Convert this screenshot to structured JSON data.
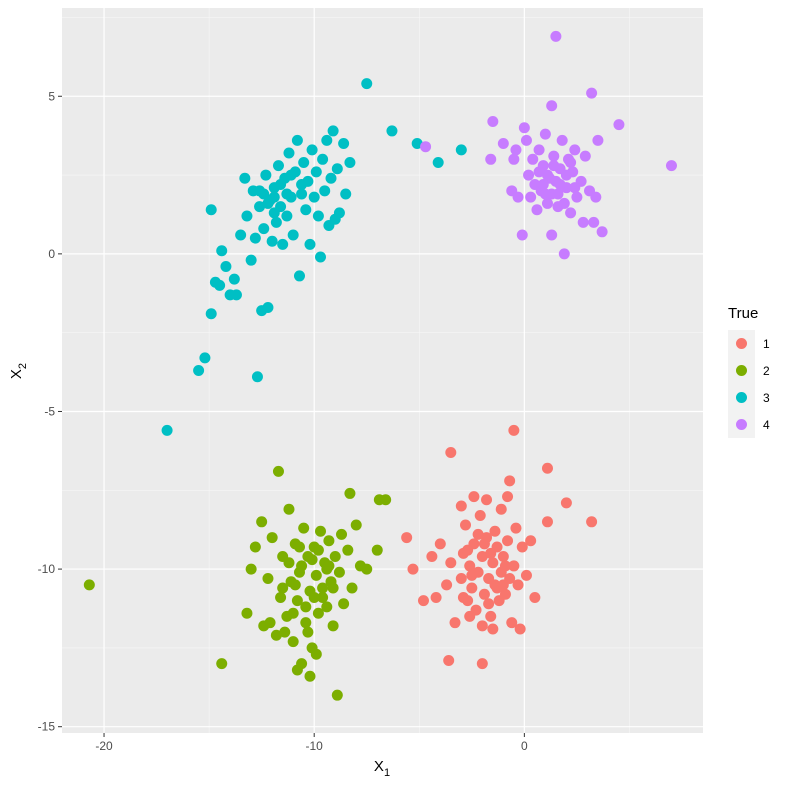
{
  "chart_data": {
    "type": "scatter",
    "xlabel": "X",
    "xlabel_sub": "1",
    "ylabel": "X",
    "ylabel_sub": "2",
    "xlim": [
      -22,
      8.5
    ],
    "ylim": [
      -15.2,
      7.8
    ],
    "x_ticks": [
      -20,
      -10,
      0
    ],
    "x_tick_labels": [
      "-20",
      "-10",
      "0"
    ],
    "y_ticks": [
      -15,
      -10,
      -5,
      0,
      5
    ],
    "y_tick_labels": [
      "-15",
      "-10",
      "-5",
      "0",
      "5"
    ],
    "grid": true,
    "legend_title": "True",
    "legend_position": "right",
    "series": [
      {
        "name": "1",
        "color": "#F8766D",
        "points": [
          [
            -5.6,
            -9.0
          ],
          [
            -5.3,
            -10.0
          ],
          [
            -4.8,
            -11.0
          ],
          [
            -4.4,
            -9.6
          ],
          [
            -4.2,
            -10.9
          ],
          [
            -4.0,
            -9.2
          ],
          [
            -3.7,
            -10.5
          ],
          [
            -3.5,
            -6.3
          ],
          [
            -3.5,
            -9.8
          ],
          [
            -3.3,
            -11.7
          ],
          [
            -3.0,
            -8.0
          ],
          [
            -3.0,
            -10.3
          ],
          [
            -2.9,
            -9.5
          ],
          [
            -2.8,
            -8.6
          ],
          [
            -2.7,
            -11.0
          ],
          [
            -2.6,
            -9.9
          ],
          [
            -2.5,
            -10.6
          ],
          [
            -2.4,
            -7.7
          ],
          [
            -2.4,
            -9.2
          ],
          [
            -2.3,
            -11.3
          ],
          [
            -2.2,
            -10.1
          ],
          [
            -2.1,
            -8.3
          ],
          [
            -2.0,
            -9.6
          ],
          [
            -2.0,
            -11.8
          ],
          [
            -1.9,
            -10.8
          ],
          [
            -1.8,
            -7.8
          ],
          [
            -1.8,
            -9.0
          ],
          [
            -1.7,
            -10.3
          ],
          [
            -1.6,
            -11.5
          ],
          [
            -1.5,
            -9.8
          ],
          [
            -1.4,
            -8.8
          ],
          [
            -1.4,
            -10.5
          ],
          [
            -1.3,
            -9.3
          ],
          [
            -1.2,
            -11.0
          ],
          [
            -1.1,
            -8.1
          ],
          [
            -1.1,
            -10.1
          ],
          [
            -1.0,
            -9.6
          ],
          [
            -0.9,
            -10.8
          ],
          [
            -0.8,
            -7.7
          ],
          [
            -0.8,
            -9.1
          ],
          [
            -0.7,
            -10.3
          ],
          [
            -0.6,
            -11.7
          ],
          [
            -0.5,
            -5.6
          ],
          [
            -0.5,
            -9.9
          ],
          [
            -0.4,
            -8.7
          ],
          [
            -0.3,
            -10.5
          ],
          [
            -0.2,
            -11.9
          ],
          [
            -0.1,
            -9.3
          ],
          [
            0.1,
            -10.2
          ],
          [
            0.3,
            -9.1
          ],
          [
            0.5,
            -10.9
          ],
          [
            1.1,
            -6.8
          ],
          [
            1.1,
            -8.5
          ],
          [
            2.0,
            -7.9
          ],
          [
            3.2,
            -8.5
          ],
          [
            -3.6,
            -12.9
          ],
          [
            -2.0,
            -13.0
          ],
          [
            -2.6,
            -11.5
          ],
          [
            -1.5,
            -11.9
          ],
          [
            -0.7,
            -7.2
          ],
          [
            -2.9,
            -10.9
          ],
          [
            -1.9,
            -9.2
          ],
          [
            -1.3,
            -10.6
          ],
          [
            -2.2,
            -8.9
          ],
          [
            -1.6,
            -9.5
          ],
          [
            -0.9,
            -9.9
          ],
          [
            -2.5,
            -10.2
          ],
          [
            -1.0,
            -10.5
          ],
          [
            -1.7,
            -11.1
          ],
          [
            -2.7,
            -9.4
          ]
        ]
      },
      {
        "name": "2",
        "color": "#7CAE00",
        "points": [
          [
            -20.7,
            -10.5
          ],
          [
            -14.4,
            -13.0
          ],
          [
            -13.2,
            -11.4
          ],
          [
            -13.0,
            -10.0
          ],
          [
            -12.8,
            -9.3
          ],
          [
            -12.5,
            -8.5
          ],
          [
            -12.4,
            -11.8
          ],
          [
            -12.2,
            -10.3
          ],
          [
            -12.0,
            -9.0
          ],
          [
            -11.8,
            -12.1
          ],
          [
            -11.7,
            -6.9
          ],
          [
            -11.6,
            -10.9
          ],
          [
            -11.5,
            -9.6
          ],
          [
            -11.3,
            -11.5
          ],
          [
            -11.2,
            -8.1
          ],
          [
            -11.1,
            -10.4
          ],
          [
            -11.0,
            -12.3
          ],
          [
            -10.9,
            -9.2
          ],
          [
            -10.8,
            -11.0
          ],
          [
            -10.7,
            -10.1
          ],
          [
            -10.6,
            -13.0
          ],
          [
            -10.5,
            -8.7
          ],
          [
            -10.4,
            -11.7
          ],
          [
            -10.3,
            -9.6
          ],
          [
            -10.2,
            -10.7
          ],
          [
            -10.1,
            -12.5
          ],
          [
            -10.0,
            -9.3
          ],
          [
            -9.9,
            -10.2
          ],
          [
            -9.8,
            -11.4
          ],
          [
            -9.7,
            -8.8
          ],
          [
            -9.6,
            -10.6
          ],
          [
            -9.5,
            -9.8
          ],
          [
            -9.4,
            -11.2
          ],
          [
            -9.3,
            -9.1
          ],
          [
            -9.2,
            -10.4
          ],
          [
            -9.1,
            -11.8
          ],
          [
            -9.0,
            -9.6
          ],
          [
            -8.9,
            -14.0
          ],
          [
            -8.8,
            -10.1
          ],
          [
            -8.7,
            -8.9
          ],
          [
            -8.6,
            -11.1
          ],
          [
            -8.4,
            -9.4
          ],
          [
            -8.3,
            -7.6
          ],
          [
            -8.2,
            -10.6
          ],
          [
            -8.0,
            -8.6
          ],
          [
            -7.8,
            -9.9
          ],
          [
            -7.5,
            -10.0
          ],
          [
            -7.0,
            -9.4
          ],
          [
            -6.9,
            -7.8
          ],
          [
            -6.6,
            -7.8
          ],
          [
            -10.3,
            -12.0
          ],
          [
            -10.8,
            -13.2
          ],
          [
            -10.2,
            -13.4
          ],
          [
            -9.9,
            -12.7
          ],
          [
            -11.5,
            -10.6
          ],
          [
            -10.6,
            -9.9
          ],
          [
            -10.0,
            -10.9
          ],
          [
            -9.4,
            -10.0
          ],
          [
            -10.9,
            -10.5
          ],
          [
            -9.8,
            -9.4
          ],
          [
            -10.4,
            -11.2
          ],
          [
            -11.2,
            -9.8
          ],
          [
            -9.6,
            -10.9
          ],
          [
            -10.1,
            -9.7
          ],
          [
            -9.1,
            -10.6
          ],
          [
            -11.0,
            -11.4
          ],
          [
            -10.7,
            -9.3
          ],
          [
            -9.3,
            -9.9
          ],
          [
            -12.1,
            -11.7
          ],
          [
            -11.4,
            -12.0
          ]
        ]
      },
      {
        "name": "3",
        "color": "#00BFC4",
        "points": [
          [
            -17.0,
            -5.6
          ],
          [
            -15.5,
            -3.7
          ],
          [
            -15.2,
            -3.3
          ],
          [
            -14.9,
            -1.9
          ],
          [
            -14.9,
            1.4
          ],
          [
            -14.7,
            -0.9
          ],
          [
            -14.5,
            -1.0
          ],
          [
            -14.4,
            0.1
          ],
          [
            -14.2,
            -0.4
          ],
          [
            -14.0,
            -1.3
          ],
          [
            -13.8,
            -0.8
          ],
          [
            -13.7,
            -1.3
          ],
          [
            -13.5,
            0.6
          ],
          [
            -13.3,
            2.4
          ],
          [
            -13.2,
            1.2
          ],
          [
            -13.0,
            -0.2
          ],
          [
            -12.9,
            2.0
          ],
          [
            -12.7,
            -3.9
          ],
          [
            -12.6,
            1.5
          ],
          [
            -12.5,
            -1.8
          ],
          [
            -12.4,
            0.8
          ],
          [
            -12.3,
            2.5
          ],
          [
            -12.2,
            -1.7
          ],
          [
            -12.1,
            1.7
          ],
          [
            -12.0,
            0.4
          ],
          [
            -11.9,
            2.1
          ],
          [
            -11.8,
            1.0
          ],
          [
            -11.7,
            2.8
          ],
          [
            -11.6,
            1.5
          ],
          [
            -11.5,
            0.3
          ],
          [
            -11.4,
            2.4
          ],
          [
            -11.3,
            1.2
          ],
          [
            -11.2,
            3.2
          ],
          [
            -11.1,
            1.8
          ],
          [
            -11.0,
            0.6
          ],
          [
            -10.9,
            2.6
          ],
          [
            -10.8,
            3.6
          ],
          [
            -10.7,
            -0.7
          ],
          [
            -10.6,
            1.9
          ],
          [
            -10.5,
            2.9
          ],
          [
            -10.4,
            1.4
          ],
          [
            -10.3,
            2.3
          ],
          [
            -10.2,
            0.3
          ],
          [
            -10.1,
            3.3
          ],
          [
            -10.0,
            1.8
          ],
          [
            -9.9,
            2.6
          ],
          [
            -9.8,
            1.2
          ],
          [
            -9.7,
            -0.1
          ],
          [
            -9.6,
            3.0
          ],
          [
            -9.5,
            2.0
          ],
          [
            -9.4,
            3.6
          ],
          [
            -9.3,
            0.9
          ],
          [
            -9.2,
            2.4
          ],
          [
            -9.1,
            3.9
          ],
          [
            -9.0,
            1.1
          ],
          [
            -8.9,
            2.7
          ],
          [
            -8.8,
            1.3
          ],
          [
            -8.6,
            3.5
          ],
          [
            -8.5,
            1.9
          ],
          [
            -8.3,
            2.9
          ],
          [
            -7.5,
            5.4
          ],
          [
            -6.3,
            3.9
          ],
          [
            -5.1,
            3.5
          ],
          [
            -4.1,
            2.9
          ],
          [
            -3.0,
            3.3
          ],
          [
            -12.6,
            2.0
          ],
          [
            -12.2,
            1.6
          ],
          [
            -11.9,
            1.8
          ],
          [
            -11.6,
            2.2
          ],
          [
            -11.3,
            1.9
          ],
          [
            -11.9,
            1.3
          ],
          [
            -12.4,
            1.9
          ],
          [
            -11.1,
            2.5
          ],
          [
            -10.6,
            2.2
          ],
          [
            -12.8,
            0.5
          ]
        ]
      },
      {
        "name": "4",
        "color": "#C77CFF",
        "points": [
          [
            -4.7,
            3.4
          ],
          [
            -1.6,
            3.0
          ],
          [
            -1.5,
            4.2
          ],
          [
            -1.0,
            3.5
          ],
          [
            -0.6,
            2.0
          ],
          [
            -0.5,
            3.0
          ],
          [
            -0.4,
            3.3
          ],
          [
            -0.3,
            1.8
          ],
          [
            -0.1,
            0.6
          ],
          [
            0.0,
            4.0
          ],
          [
            0.1,
            3.6
          ],
          [
            0.2,
            2.5
          ],
          [
            0.3,
            1.8
          ],
          [
            0.4,
            3.0
          ],
          [
            0.5,
            2.2
          ],
          [
            0.6,
            1.4
          ],
          [
            0.7,
            3.3
          ],
          [
            0.8,
            2.0
          ],
          [
            0.9,
            2.8
          ],
          [
            1.0,
            3.8
          ],
          [
            1.1,
            1.6
          ],
          [
            1.2,
            2.4
          ],
          [
            1.3,
            0.6
          ],
          [
            1.3,
            4.7
          ],
          [
            1.4,
            3.1
          ],
          [
            1.5,
            6.9
          ],
          [
            1.6,
            1.9
          ],
          [
            1.7,
            2.7
          ],
          [
            1.8,
            3.6
          ],
          [
            1.9,
            0.0
          ],
          [
            2.0,
            2.1
          ],
          [
            2.1,
            3.0
          ],
          [
            2.2,
            1.3
          ],
          [
            2.3,
            2.6
          ],
          [
            2.4,
            3.3
          ],
          [
            2.5,
            1.8
          ],
          [
            2.7,
            2.3
          ],
          [
            2.8,
            1.0
          ],
          [
            2.9,
            3.1
          ],
          [
            3.1,
            2.0
          ],
          [
            3.2,
            5.1
          ],
          [
            3.3,
            1.0
          ],
          [
            3.4,
            1.8
          ],
          [
            3.5,
            3.6
          ],
          [
            3.7,
            0.7
          ],
          [
            4.5,
            4.1
          ],
          [
            7.0,
            2.8
          ],
          [
            0.9,
            2.2
          ],
          [
            1.3,
            1.9
          ],
          [
            1.7,
            2.2
          ],
          [
            1.1,
            2.5
          ],
          [
            1.5,
            2.3
          ],
          [
            2.0,
            2.5
          ],
          [
            1.9,
            1.6
          ],
          [
            0.7,
            2.6
          ],
          [
            2.4,
            2.1
          ],
          [
            1.4,
            2.8
          ],
          [
            2.2,
            2.9
          ],
          [
            1.0,
            1.9
          ],
          [
            1.6,
            1.5
          ]
        ]
      }
    ]
  }
}
